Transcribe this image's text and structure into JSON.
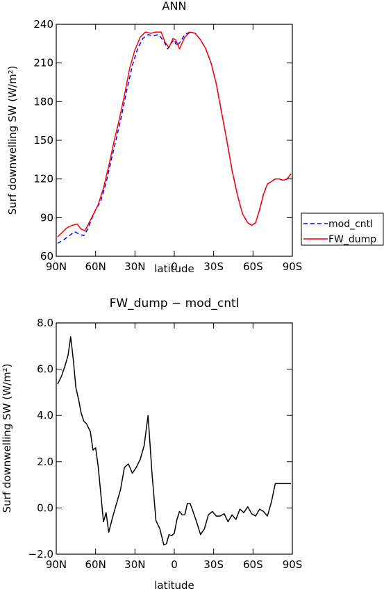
{
  "chart_data": [
    {
      "type": "line",
      "title": "ANN",
      "xlabel": "latitude",
      "ylabel": "Surf downwelling SW (W/m²)",
      "xlim": [
        90,
        -90
      ],
      "ylim": [
        60,
        240
      ],
      "xticks": [
        90,
        60,
        30,
        0,
        -30,
        -60,
        -90
      ],
      "xtick_labels": [
        "90N",
        "60N",
        "30N",
        "0",
        "30S",
        "60S",
        "90S"
      ],
      "yticks": [
        60,
        90,
        120,
        150,
        180,
        210,
        240
      ],
      "ytick_labels": [
        "60",
        "90",
        "120",
        "150",
        "180",
        "210",
        "240"
      ],
      "legend_position": "right",
      "series": [
        {
          "name": "mod_cntl",
          "color": "#0000ff",
          "style": "dashed",
          "x": [
            89,
            84,
            80,
            76,
            72,
            69,
            66,
            63,
            60,
            56,
            52,
            48,
            44,
            40,
            36,
            32,
            28,
            24,
            20,
            16,
            12,
            8,
            5,
            2,
            0,
            -2,
            -5,
            -8,
            -12,
            -16,
            -20,
            -24,
            -28,
            -32,
            -36,
            -40,
            -44,
            -48,
            -52,
            -56,
            -59,
            -62,
            -65,
            -68,
            -71,
            -74,
            -77,
            -80,
            -83,
            -86,
            -89
          ],
          "y": [
            70,
            73,
            76,
            79,
            77,
            76,
            81,
            89,
            96,
            103,
            117,
            135,
            152,
            170,
            190,
            208,
            221,
            229,
            232,
            231,
            232,
            227,
            221,
            226,
            228,
            223,
            227,
            232,
            234,
            233,
            228,
            221,
            210,
            194,
            172,
            150,
            127,
            108,
            93,
            86,
            84,
            86,
            96,
            108,
            116,
            118,
            120,
            120,
            119,
            120,
            124
          ]
        },
        {
          "name": "FW_dump",
          "color": "#ff0000",
          "style": "solid",
          "x": [
            89,
            86,
            82,
            78,
            74,
            71,
            68,
            65,
            62,
            58,
            54,
            50,
            46,
            42,
            38,
            34,
            30,
            26,
            22,
            18,
            14,
            10,
            7,
            4,
            1,
            -1,
            -4,
            -8,
            -12,
            -16,
            -20,
            -24,
            -28,
            -32,
            -36,
            -40,
            -44,
            -48,
            -52,
            -56,
            -59,
            -62,
            -65,
            -68,
            -71,
            -74,
            -77,
            -80,
            -83,
            -86,
            -89
          ],
          "y": [
            75,
            78,
            82,
            84,
            85,
            81,
            80,
            86,
            92,
            100,
            113,
            130,
            149,
            166,
            185,
            206,
            220,
            230,
            234,
            233,
            234,
            234,
            226,
            222,
            229,
            228,
            221,
            230,
            234,
            233,
            228,
            221,
            210,
            194,
            172,
            150,
            127,
            108,
            93,
            86,
            84,
            86,
            96,
            108,
            116,
            118,
            120,
            120,
            119,
            120,
            124
          ]
        }
      ]
    },
    {
      "type": "line",
      "title": "FW_dump − mod_cntl",
      "xlabel": "latitude",
      "ylabel": "Surf downwelling SW (W/m²)",
      "xlim": [
        90,
        -90
      ],
      "ylim": [
        -2,
        8
      ],
      "xticks": [
        90,
        60,
        30,
        0,
        -30,
        -60,
        -90
      ],
      "xtick_labels": [
        "90N",
        "60N",
        "30N",
        "0",
        "30S",
        "60S",
        "90S"
      ],
      "yticks": [
        -2,
        0,
        2,
        4,
        6,
        8
      ],
      "ytick_labels": [
        "−2.0",
        "0.0",
        "2.0",
        "4.0",
        "6.0",
        "8.0"
      ],
      "series": [
        {
          "color": "#000000",
          "style": "solid",
          "x": [
            89,
            86,
            83,
            81,
            79,
            77,
            75,
            73,
            71,
            69,
            67,
            64,
            62,
            60,
            58,
            56,
            54,
            52,
            50,
            47,
            44,
            41,
            38,
            35,
            32,
            29,
            26,
            23,
            20,
            17,
            14,
            11,
            8,
            6,
            4,
            2,
            0,
            -2,
            -4,
            -6,
            -8,
            -10,
            -12,
            -14,
            -17,
            -20,
            -23,
            -26,
            -29,
            -32,
            -35,
            -38,
            -41,
            -44,
            -47,
            -50,
            -53,
            -56,
            -59,
            -62,
            -65,
            -68,
            -71,
            -74,
            -77,
            -80,
            -83,
            -86,
            -89
          ],
          "y": [
            5.35,
            5.7,
            6.2,
            6.6,
            7.4,
            6.4,
            5.2,
            4.7,
            4.1,
            3.75,
            3.65,
            3.3,
            2.5,
            2.6,
            1.8,
            0.6,
            -0.6,
            -0.2,
            -1.05,
            -0.4,
            0.2,
            0.8,
            1.75,
            1.9,
            1.5,
            1.75,
            2.1,
            2.7,
            4.0,
            1.5,
            -0.55,
            -0.9,
            -1.6,
            -1.55,
            -1.15,
            -1.2,
            -1.1,
            -0.5,
            -0.15,
            -0.3,
            -0.3,
            0.2,
            0.2,
            -0.1,
            -0.6,
            -1.15,
            -0.9,
            -0.3,
            -0.15,
            -0.35,
            -0.35,
            -0.25,
            -0.6,
            -0.3,
            -0.5,
            -0.05,
            -0.2,
            0.05,
            -0.25,
            -0.35,
            -0.05,
            -0.15,
            -0.35,
            0.25,
            1.05,
            1.05,
            1.05,
            1.05,
            1.05
          ]
        }
      ]
    }
  ]
}
